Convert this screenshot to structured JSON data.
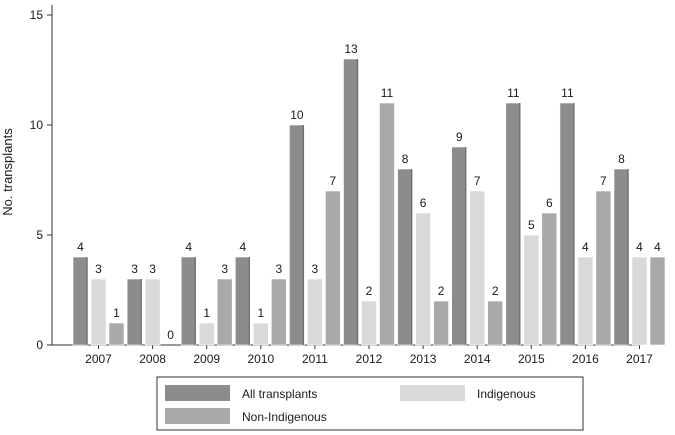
{
  "chart_data": {
    "type": "bar",
    "ylabel": "No. transplants",
    "xlabel": "",
    "title": "",
    "categories": [
      "2007",
      "2008",
      "2009",
      "2010",
      "2011",
      "2012",
      "2013",
      "2014",
      "2015",
      "2016",
      "2017"
    ],
    "series": [
      {
        "name": "All transplants",
        "values": [
          4,
          3,
          4,
          4,
          10,
          13,
          8,
          9,
          11,
          11,
          8
        ],
        "color": "#8c8c8c"
      },
      {
        "name": "Indigenous",
        "values": [
          3,
          3,
          1,
          1,
          3,
          2,
          6,
          7,
          5,
          4,
          4
        ],
        "color": "#d9d9d9"
      },
      {
        "name": "Non-Indigenous",
        "values": [
          1,
          0,
          3,
          3,
          7,
          11,
          2,
          2,
          6,
          7,
          4
        ],
        "color": "#a9a9a9"
      }
    ],
    "ylim": [
      0,
      15
    ],
    "yticks": [
      0,
      5,
      10,
      15
    ],
    "grid": false,
    "legend_position": "bottom"
  }
}
